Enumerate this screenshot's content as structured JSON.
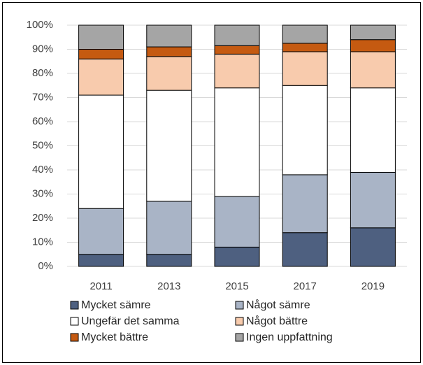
{
  "chart_data": {
    "type": "stacked_bar",
    "categories": [
      "2011",
      "2013",
      "2015",
      "2017",
      "2019"
    ],
    "series": [
      {
        "name": "Mycket sämre",
        "color": "#4e6080",
        "values": [
          5,
          5,
          8,
          14,
          16
        ]
      },
      {
        "name": "Något sämre",
        "color": "#a9b4c6",
        "values": [
          19,
          22,
          21,
          24,
          23
        ]
      },
      {
        "name": "Ungefär det samma",
        "color": "#ffffff",
        "values": [
          47,
          46,
          45,
          37,
          35
        ]
      },
      {
        "name": "Något bättre",
        "color": "#f8cbad",
        "values": [
          15,
          14,
          14,
          14,
          15
        ]
      },
      {
        "name": "Mycket bättre",
        "color": "#c55a11",
        "values": [
          4,
          4,
          3.5,
          3.5,
          5
        ]
      },
      {
        "name": "Ingen uppfattning",
        "color": "#a5a5a5",
        "values": [
          10,
          9,
          8.5,
          7.5,
          6
        ]
      }
    ],
    "ylim": [
      0,
      100
    ],
    "yticks": [
      {
        "value": 0,
        "label": "0%"
      },
      {
        "value": 10,
        "label": "10%"
      },
      {
        "value": 20,
        "label": "20%"
      },
      {
        "value": 30,
        "label": "30%"
      },
      {
        "value": 40,
        "label": "40%"
      },
      {
        "value": 50,
        "label": "50%"
      },
      {
        "value": 60,
        "label": "60%"
      },
      {
        "value": 70,
        "label": "70%"
      },
      {
        "value": 80,
        "label": "80%"
      },
      {
        "value": 90,
        "label": "90%"
      },
      {
        "value": 100,
        "label": "100%"
      }
    ],
    "grid": true
  }
}
